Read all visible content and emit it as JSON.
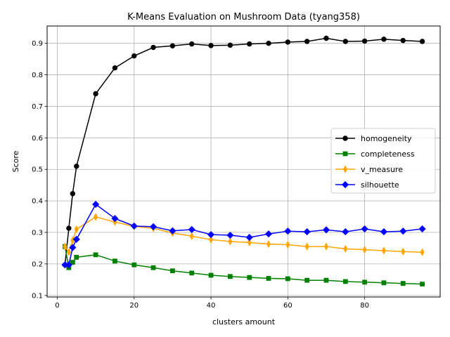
{
  "chart_data": {
    "type": "line",
    "title": "K-Means Evaluation on Mushroom Data (tyang358)",
    "xlabel": "clusters amount",
    "ylabel": "Score",
    "xlim": [
      -2.65,
      99.65
    ],
    "ylim": [
      0.095,
      0.955
    ],
    "xticks": [
      0,
      20,
      40,
      60,
      80
    ],
    "yticks": [
      0.1,
      0.2,
      0.3,
      0.4,
      0.5,
      0.6,
      0.7,
      0.8,
      0.9
    ],
    "grid": true,
    "legend_position": "center-right",
    "x": [
      2,
      3,
      4,
      5,
      10,
      15,
      20,
      25,
      30,
      35,
      40,
      45,
      50,
      55,
      60,
      65,
      70,
      75,
      80,
      85,
      90,
      95
    ],
    "series": [
      {
        "name": "homogeneity",
        "color": "#000000",
        "marker": "circle",
        "values": [
          0.197,
          0.313,
          0.423,
          0.51,
          0.74,
          0.822,
          0.86,
          0.887,
          0.892,
          0.898,
          0.893,
          0.894,
          0.898,
          0.9,
          0.904,
          0.906,
          0.916,
          0.906,
          0.907,
          0.913,
          0.909,
          0.906
        ]
      },
      {
        "name": "completeness",
        "color": "#008000",
        "marker": "square",
        "values": [
          0.255,
          0.188,
          0.205,
          0.221,
          0.229,
          0.209,
          0.197,
          0.188,
          0.178,
          0.171,
          0.164,
          0.16,
          0.157,
          0.154,
          0.153,
          0.148,
          0.148,
          0.144,
          0.142,
          0.14,
          0.138,
          0.136
        ]
      },
      {
        "name": "v_measure",
        "color": "#ffa500",
        "marker": "thin_diamond",
        "values": [
          0.255,
          0.237,
          0.275,
          0.31,
          0.349,
          0.333,
          0.319,
          0.313,
          0.298,
          0.288,
          0.277,
          0.271,
          0.268,
          0.263,
          0.261,
          0.255,
          0.255,
          0.248,
          0.245,
          0.242,
          0.239,
          0.237
        ]
      },
      {
        "name": "silhouette",
        "color": "#0000ff",
        "marker": "diamond",
        "values": [
          0.197,
          0.197,
          0.252,
          0.278,
          0.389,
          0.344,
          0.32,
          0.318,
          0.305,
          0.309,
          0.293,
          0.291,
          0.284,
          0.295,
          0.304,
          0.302,
          0.308,
          0.302,
          0.311,
          0.302,
          0.304,
          0.311
        ]
      }
    ]
  }
}
